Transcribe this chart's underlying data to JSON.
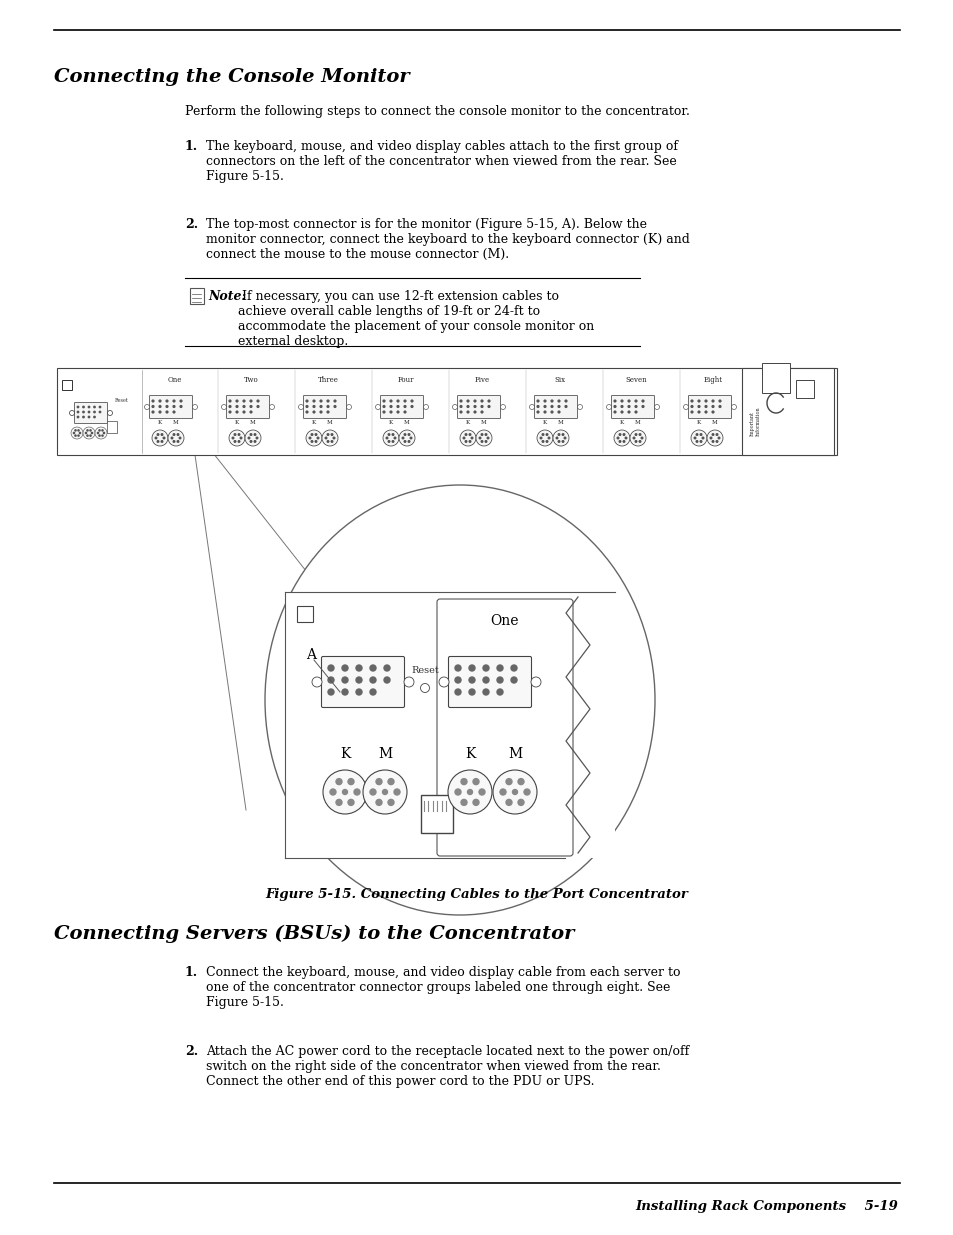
{
  "title1": "Connecting the Console Monitor",
  "title2": "Connecting Servers (BSUs) to the Concentrator",
  "intro1": "Perform the following steps to connect the console monitor to the concentrator.",
  "step1_1": "The keyboard, mouse, and video display cables attach to the first group of\nconnectors on the left of the concentrator when viewed from the rear. See\nFigure 5-15.",
  "step1_2": "The top-most connector is for the monitor (Figure 5-15, A). Below the\nmonitor connector, connect the keyboard to the keyboard connector (K) and\nconnect the mouse to the mouse connector (M).",
  "note_bold": "Note:",
  "note_text": " If necessary, you can use 12-ft extension cables to\nachieve overall cable lengths of 19-ft or 24-ft to\naccommodate the placement of your console monitor on\nexternal desktop.",
  "fig_caption": "Figure 5-15. Connecting Cables to the Port Concentrator",
  "step2_1": "Connect the keyboard, mouse, and video display cable from each server to\none of the concentrator connector groups labeled one through eight. See\nFigure 5-15.",
  "step2_2": "Attach the AC power cord to the receptacle located next to the power on/off\nswitch on the right side of the concentrator when viewed from the rear.\nConnect the other end of this power cord to the PDU or UPS.",
  "footer": "Installing Rack Components    5-19",
  "bg_color": "#ffffff",
  "text_color": "#000000"
}
